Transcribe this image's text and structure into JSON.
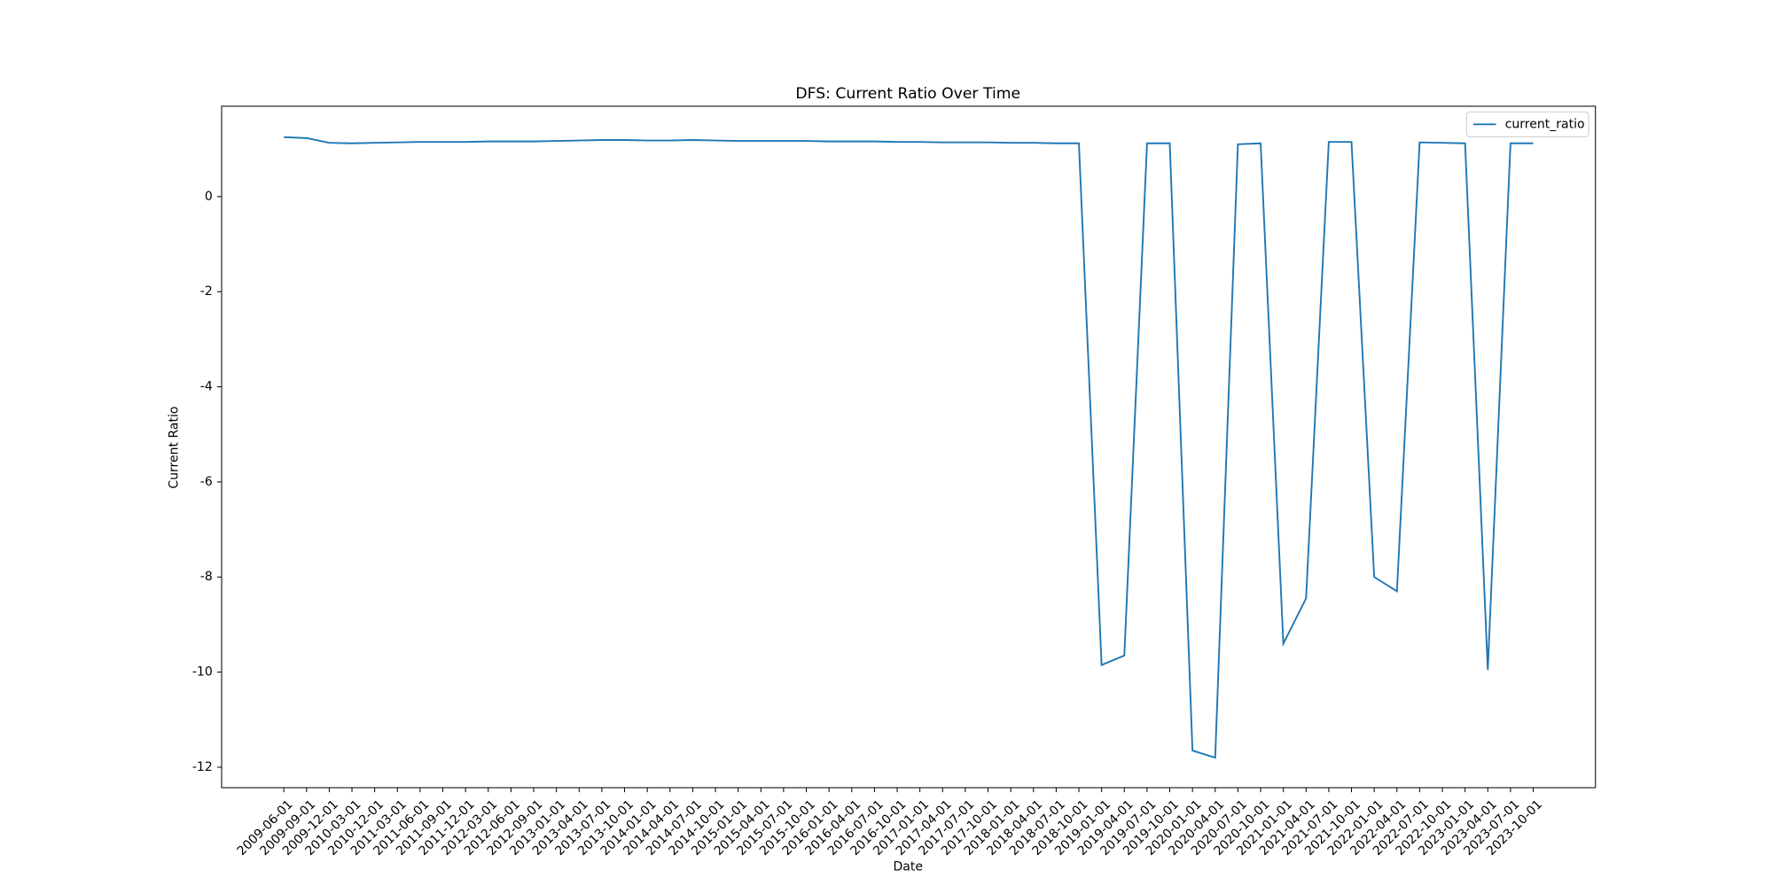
{
  "chart_data": {
    "type": "line",
    "title": "DFS: Current Ratio Over Time",
    "x_label": "Date",
    "y_label": "Current Ratio",
    "categories": [
      "2009-06-01",
      "2009-09-01",
      "2009-12-01",
      "2010-03-01",
      "2010-12-01",
      "2011-03-01",
      "2011-06-01",
      "2011-09-01",
      "2011-12-01",
      "2012-03-01",
      "2012-06-01",
      "2012-09-01",
      "2013-01-01",
      "2013-04-01",
      "2013-07-01",
      "2013-10-01",
      "2014-01-01",
      "2014-04-01",
      "2014-07-01",
      "2014-10-01",
      "2015-01-01",
      "2015-04-01",
      "2015-07-01",
      "2015-10-01",
      "2016-01-01",
      "2016-04-01",
      "2016-07-01",
      "2016-10-01",
      "2017-01-01",
      "2017-04-01",
      "2017-07-01",
      "2017-10-01",
      "2018-01-01",
      "2018-04-01",
      "2018-07-01",
      "2018-10-01",
      "2019-01-01",
      "2019-04-01",
      "2019-07-01",
      "2019-10-01",
      "2020-01-01",
      "2020-04-01",
      "2020-07-01",
      "2020-10-01",
      "2021-01-01",
      "2021-04-01",
      "2021-07-01",
      "2021-10-01",
      "2022-01-01",
      "2022-04-01",
      "2022-07-01",
      "2022-10-01",
      "2023-01-01",
      "2023-04-01",
      "2023-07-01",
      "2023-10-01"
    ],
    "series": [
      {
        "name": "current_ratio",
        "color": "#1f77b4",
        "values": [
          1.25,
          1.23,
          1.13,
          1.12,
          1.13,
          1.14,
          1.15,
          1.15,
          1.15,
          1.16,
          1.16,
          1.16,
          1.17,
          1.18,
          1.19,
          1.19,
          1.18,
          1.18,
          1.19,
          1.18,
          1.17,
          1.17,
          1.17,
          1.17,
          1.16,
          1.16,
          1.16,
          1.15,
          1.15,
          1.14,
          1.14,
          1.14,
          1.13,
          1.13,
          1.12,
          1.12,
          -9.85,
          -9.65,
          1.12,
          1.12,
          -11.65,
          -11.8,
          1.1,
          1.12,
          -9.4,
          -8.45,
          1.15,
          1.15,
          -8.0,
          -8.3,
          1.14,
          1.13,
          1.12,
          -9.95,
          1.12,
          1.12
        ]
      }
    ],
    "ylim": [
      -12.43,
      1.9
    ],
    "yticks": [
      -12,
      -10,
      -8,
      -6,
      -4,
      -2,
      0
    ],
    "legend": "upper right"
  }
}
